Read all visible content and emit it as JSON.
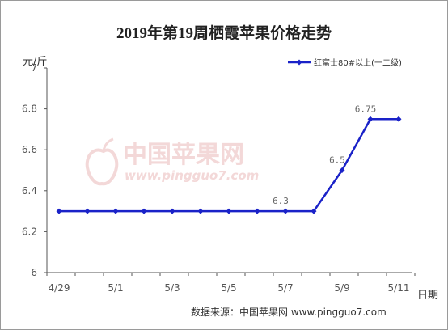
{
  "chart_data": {
    "type": "line",
    "title": "2019年第19周栖霞苹果价格走势",
    "ylabel": "元/斤",
    "xlabel": "日期",
    "ylim": [
      6,
      7
    ],
    "yticks": [
      "6",
      "6.2",
      "6.4",
      "6.6",
      "6.8",
      "7"
    ],
    "categories": [
      "4/29",
      "4/30",
      "5/1",
      "5/2",
      "5/3",
      "5/4",
      "5/5",
      "5/6",
      "5/7",
      "5/8",
      "5/9",
      "5/10",
      "5/11"
    ],
    "xtick_labels": [
      "4/29",
      "5/1",
      "5/3",
      "5/5",
      "5/7",
      "5/9",
      "5/11"
    ],
    "series": [
      {
        "name": "红富士80#以上(一二级)",
        "color": "#1a22c8",
        "values": [
          6.3,
          6.3,
          6.3,
          6.3,
          6.3,
          6.3,
          6.3,
          6.3,
          6.3,
          6.3,
          6.5,
          6.75,
          6.75
        ]
      }
    ],
    "data_labels": [
      {
        "index": 8,
        "text": "6.3"
      },
      {
        "index": 10,
        "text": "6.5"
      },
      {
        "index": 11,
        "text": "6.75"
      }
    ],
    "grid": false,
    "legend_position": "top-right"
  },
  "watermark": {
    "name": "中国苹果网",
    "url": "www.pingguo7.com"
  },
  "source": "数据来源：中国苹果网   www.pingguo7.com"
}
